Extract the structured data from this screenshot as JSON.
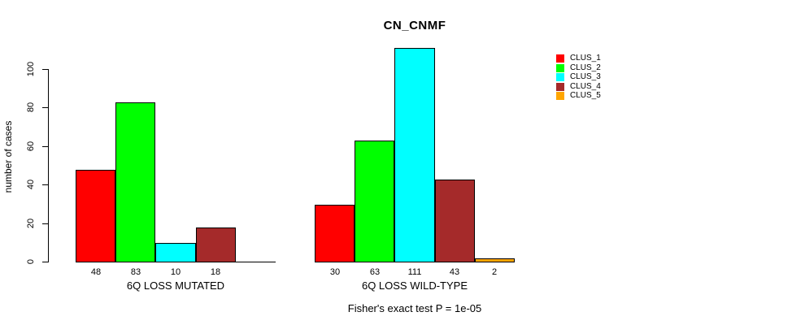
{
  "title": "CN_CNMF",
  "chart_data": {
    "type": "bar",
    "title": "CN_CNMF",
    "ylabel": "number of cases",
    "xlabel": "",
    "ylim": [
      0,
      111
    ],
    "yticks": [
      0,
      20,
      40,
      60,
      80,
      100
    ],
    "grid": false,
    "legend_position": "top-right",
    "categories": [
      "6Q LOSS MUTATED",
      "6Q LOSS WILD-TYPE"
    ],
    "series": [
      {
        "name": "CLUS_1",
        "color": "#FF0000",
        "values": [
          48,
          30
        ]
      },
      {
        "name": "CLUS_2",
        "color": "#00FF00",
        "values": [
          83,
          63
        ]
      },
      {
        "name": "CLUS_3",
        "color": "#00FFFF",
        "values": [
          10,
          111
        ]
      },
      {
        "name": "CLUS_4",
        "color": "#A52A2A",
        "values": [
          18,
          43
        ]
      },
      {
        "name": "CLUS_5",
        "color": "#FFA500",
        "values": [
          0,
          2
        ]
      }
    ],
    "bar_value_labels": [
      [
        "48",
        "83",
        "10",
        "18",
        ""
      ],
      [
        "30",
        "63",
        "111",
        "43",
        "2"
      ]
    ],
    "annotation": "Fisher's exact test P = 1e-05"
  }
}
